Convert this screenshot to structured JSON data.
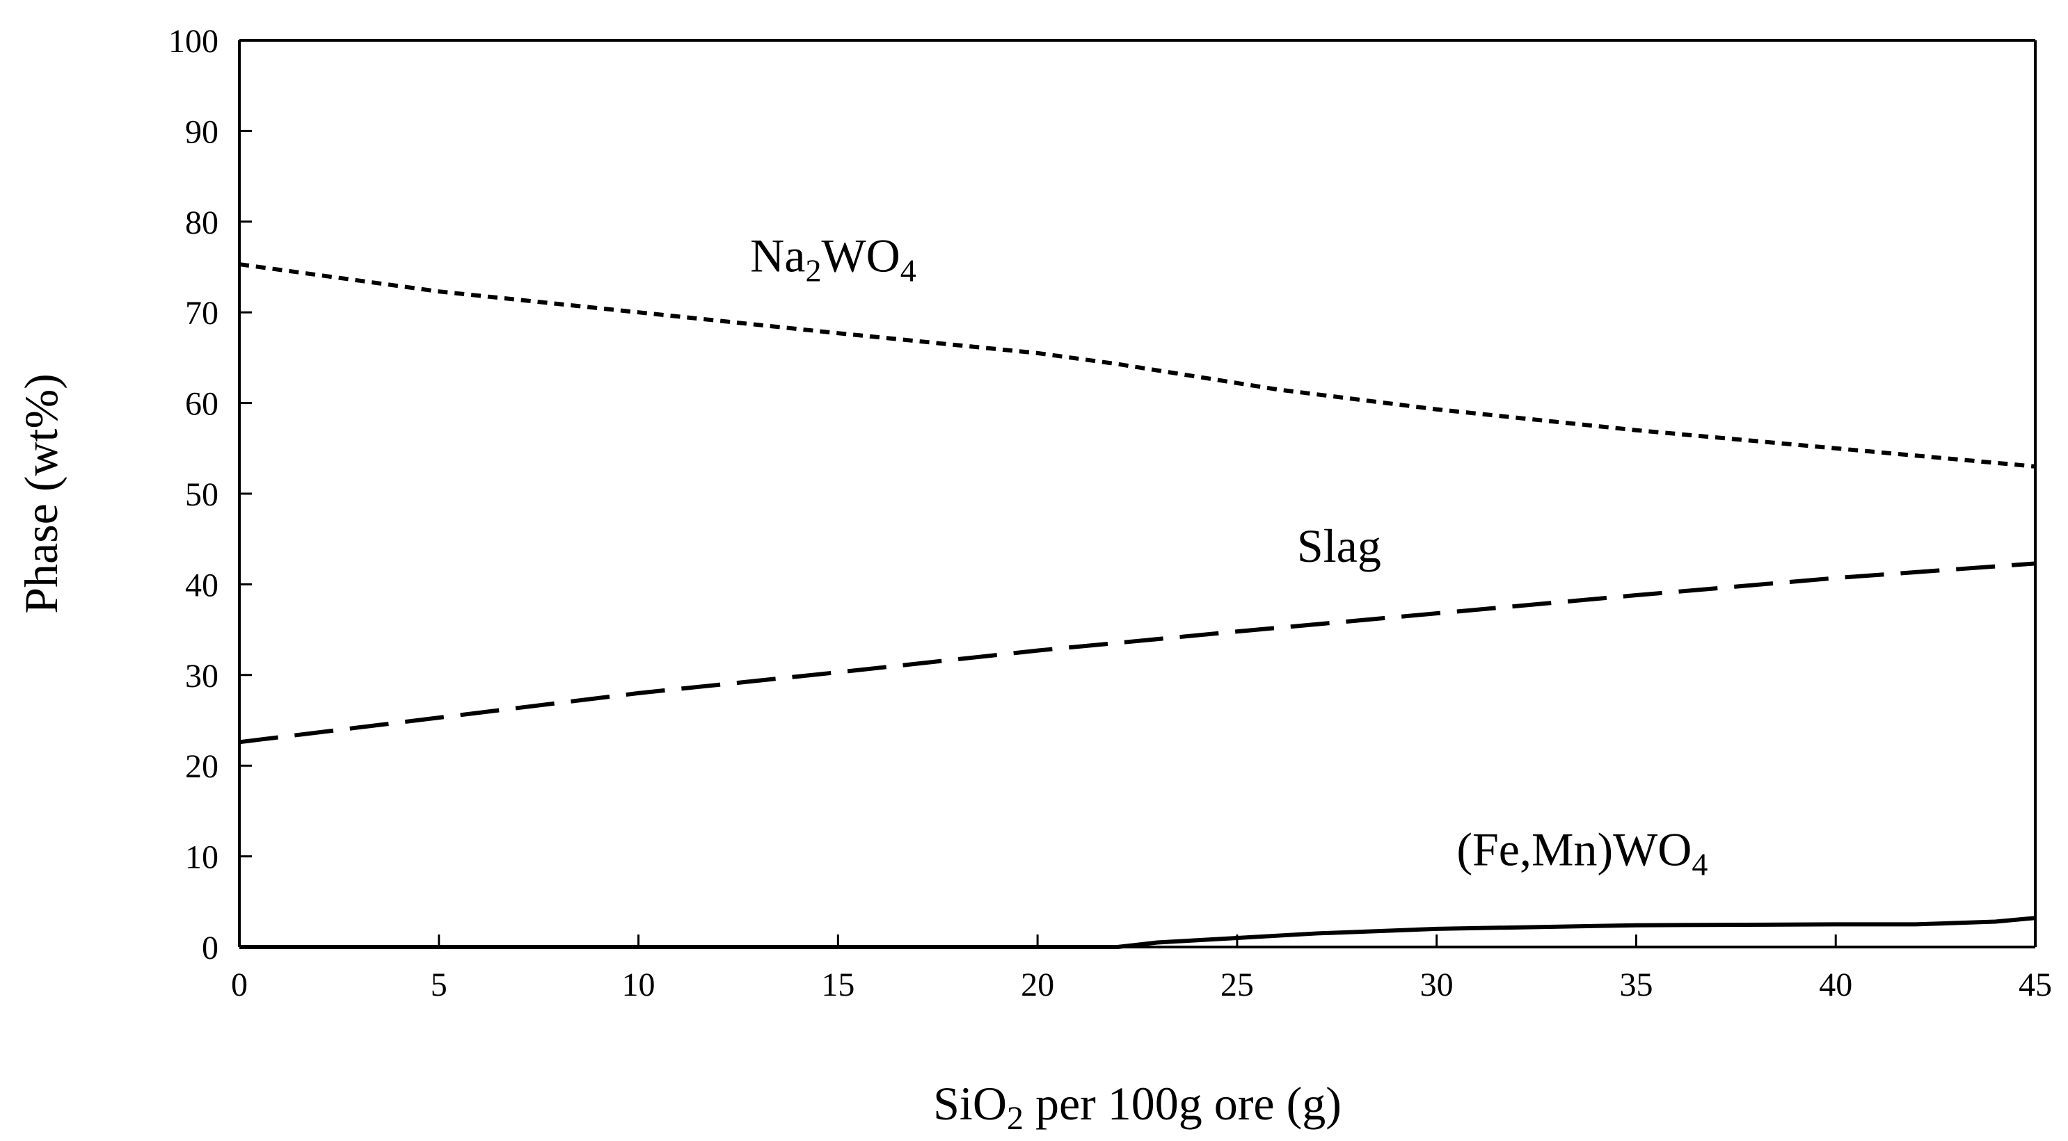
{
  "chart_data": {
    "type": "line",
    "title": "",
    "xlabel": "SiO₂ per 100g ore (g)",
    "ylabel": "Phase (wt%)",
    "xlim": [
      0,
      45
    ],
    "ylim": [
      0,
      100
    ],
    "xticks": [
      0,
      5,
      10,
      15,
      20,
      25,
      30,
      35,
      40,
      45
    ],
    "yticks": [
      0,
      10,
      20,
      30,
      40,
      50,
      60,
      70,
      80,
      90,
      100
    ],
    "series": [
      {
        "name": "Na2WO4",
        "label": "Na₂WO₄",
        "style": "dotted",
        "x": [
          0,
          5,
          10,
          15,
          20,
          22,
          26,
          30,
          35,
          40,
          45
        ],
        "y": [
          75.3,
          72.3,
          70.0,
          67.7,
          65.5,
          64.3,
          61.5,
          59.3,
          57.0,
          55.0,
          53.0
        ]
      },
      {
        "name": "Slag",
        "label": "Slag",
        "style": "dashed",
        "x": [
          0,
          5,
          10,
          15,
          20,
          25,
          30,
          35,
          40,
          45
        ],
        "y": [
          22.6,
          25.3,
          28.0,
          30.3,
          32.7,
          34.8,
          36.8,
          38.8,
          40.7,
          42.3
        ]
      },
      {
        "name": "(Fe,Mn)WO4",
        "label": "(Fe,Mn)WO₄",
        "style": "solid",
        "x": [
          0,
          10,
          20,
          22,
          23,
          25,
          27,
          30,
          35,
          40,
          42,
          44,
          45
        ],
        "y": [
          0,
          0,
          0,
          0,
          0.5,
          1.0,
          1.5,
          2.0,
          2.4,
          2.5,
          2.5,
          2.8,
          3.2
        ]
      }
    ],
    "annotations": [
      {
        "text": "Na₂WO₄",
        "x": 12.8,
        "y": 74.5,
        "series": "Na2WO4"
      },
      {
        "text": "Slag",
        "x": 26.5,
        "y": 42.5,
        "series": "Slag"
      },
      {
        "text": "(Fe,Mn)WO₄",
        "x": 30.5,
        "y": 9.0,
        "series": "(Fe,Mn)WO4"
      }
    ],
    "grid": false,
    "legend": "none",
    "colors": {
      "line": "#000000",
      "axis": "#000000",
      "background": "#ffffff"
    }
  }
}
